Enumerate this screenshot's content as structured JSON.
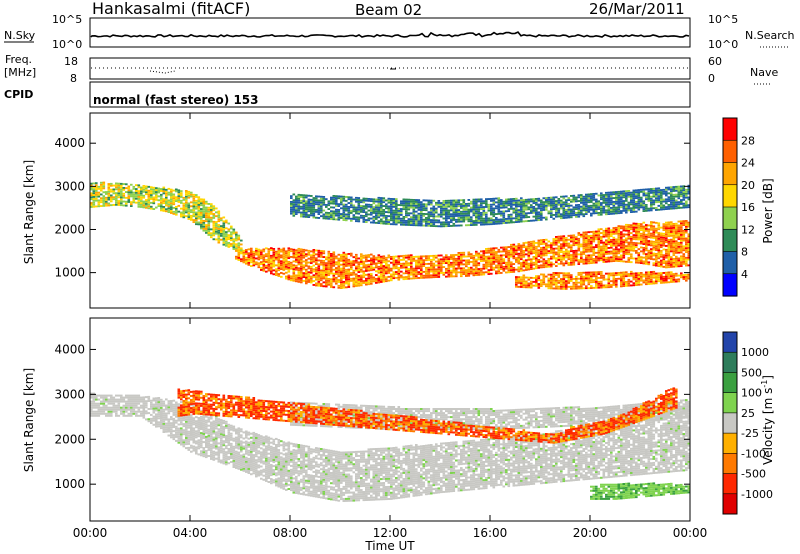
{
  "header": {
    "station": "Hankasalmi (fitACF)",
    "beam": "Beam 02",
    "date": "26/Mar/2011"
  },
  "noise_panel": {
    "left_label": "N.Sky",
    "left_ticks": [
      "10^5",
      "10^0"
    ],
    "right_ticks": [
      "10^5",
      "10^0"
    ],
    "right_label": "N.Search"
  },
  "freq_panel": {
    "label_top": "Freq.",
    "label_bottom": "[MHz]",
    "left_ticks": [
      "18",
      "8"
    ],
    "right_ticks": [
      "60",
      "0"
    ],
    "right_label": "Nave"
  },
  "cpid_panel": {
    "label": "CPID",
    "mode_text": "normal (fast stereo) 153"
  },
  "colorbars": {
    "power": {
      "label": "Power [dB]",
      "ticks": [
        "28",
        "24",
        "20",
        "16",
        "12",
        "8",
        "4"
      ],
      "colors": [
        "#ff0000",
        "#ff6000",
        "#ffa500",
        "#ffd700",
        "#8fd14f",
        "#2e8b57",
        "#1f5fa8",
        "#0000ff"
      ]
    },
    "velocity": {
      "label": "Velocity [m s",
      "label_sup": "-1",
      "label_end": "]",
      "ticks": [
        "1000",
        "500",
        "100",
        "25",
        "-25",
        "-100",
        "-500",
        "-1000"
      ],
      "colors": [
        "#2244aa",
        "#2e7d5b",
        "#3aa040",
        "#7fd34f",
        "#c8c8c4",
        "#ffb000",
        "#ff7a00",
        "#ff2800",
        "#e00000"
      ]
    }
  },
  "chart_data": [
    {
      "type": "heatmap",
      "title": "Power",
      "xlabel": "Time UT",
      "ylabel": "Slant Range [km]",
      "x_ticks": [
        "00:00",
        "04:00",
        "08:00",
        "12:00",
        "16:00",
        "20:00",
        "00:00"
      ],
      "y_ticks": [
        1000,
        2000,
        3000,
        4000
      ],
      "xlim_hours": [
        0,
        24
      ],
      "ylim_km": [
        180,
        4700
      ],
      "bands": [
        {
          "name": "main scatter band",
          "hours": [
            5.8,
            6.5,
            7,
            8,
            9,
            10,
            11,
            12,
            13,
            14,
            15,
            16,
            17,
            18,
            19,
            20,
            21,
            22,
            23,
            24
          ],
          "low_km": [
            1300,
            1100,
            1000,
            800,
            680,
            620,
            700,
            800,
            850,
            880,
            900,
            950,
            1000,
            1100,
            1150,
            1200,
            1250,
            1200,
            1100,
            1150
          ],
          "high_km": [
            1500,
            1550,
            1550,
            1550,
            1500,
            1450,
            1400,
            1380,
            1380,
            1400,
            1450,
            1550,
            1650,
            1750,
            1850,
            1950,
            2050,
            2150,
            2150,
            2200
          ],
          "power_db": 28
        },
        {
          "name": "upper scatter",
          "hours": [
            0,
            1,
            2,
            3,
            4,
            5,
            6
          ],
          "low_km": [
            2500,
            2550,
            2500,
            2400,
            2200,
            1700,
            1450
          ],
          "high_km": [
            3100,
            3050,
            3000,
            2950,
            2850,
            2500,
            1800
          ],
          "power_db": 20
        },
        {
          "name": "lower right band",
          "hours": [
            17,
            18,
            19,
            20,
            21,
            22,
            23,
            24
          ],
          "low_km": [
            650,
            620,
            600,
            620,
            650,
            700,
            750,
            800
          ],
          "high_km": [
            900,
            950,
            1000,
            1000,
            1000,
            1000,
            1000,
            950
          ],
          "power_db": 28
        },
        {
          "name": "ground scatter far range",
          "hours": [
            8,
            10,
            12,
            14,
            16,
            18,
            20,
            22,
            24
          ],
          "low_km": [
            2300,
            2200,
            2100,
            2050,
            2100,
            2200,
            2300,
            2400,
            2500
          ],
          "high_km": [
            2800,
            2750,
            2700,
            2650,
            2700,
            2700,
            2800,
            2900,
            3000
          ],
          "power_db": 12
        }
      ]
    },
    {
      "type": "heatmap",
      "title": "Velocity",
      "xlabel": "Time UT",
      "ylabel": "Slant Range [km]",
      "x_ticks": [
        "00:00",
        "04:00",
        "08:00",
        "12:00",
        "16:00",
        "20:00",
        "00:00"
      ],
      "y_ticks": [
        1000,
        2000,
        3000,
        4000
      ],
      "xlim_hours": [
        0,
        24
      ],
      "ylim_km": [
        180,
        4700
      ],
      "bands": [
        {
          "name": "ground scatter (grey)",
          "hours": [
            0,
            2,
            4,
            6,
            8,
            10,
            12,
            14,
            16,
            18,
            20,
            22,
            24
          ],
          "low_km": [
            2500,
            2500,
            1700,
            1300,
            800,
            600,
            650,
            800,
            900,
            1000,
            1100,
            1200,
            1300
          ],
          "high_km": [
            3000,
            2950,
            2800,
            2200,
            1900,
            1700,
            1800,
            1900,
            2000,
            2100,
            2300,
            2500,
            2700
          ],
          "velocity": 0
        },
        {
          "name": "far ground scatter",
          "hours": [
            8,
            12,
            16,
            20,
            24
          ],
          "low_km": [
            2300,
            2200,
            2200,
            2300,
            2500
          ],
          "high_km": [
            2800,
            2700,
            2650,
            2700,
            2900
          ],
          "velocity": 0
        },
        {
          "name": "positive flow patch",
          "hours": [
            20,
            21,
            22,
            23,
            24
          ],
          "low_km": [
            650,
            650,
            700,
            750,
            800
          ],
          "high_km": [
            950,
            1000,
            1000,
            1000,
            950
          ],
          "velocity": 150
        },
        {
          "name": "negative flow patches",
          "hours": [
            3.5,
            4.2,
            18.5,
            19.5,
            20.5,
            21.5,
            22.5,
            23.5
          ],
          "low_km": [
            2500,
            2550,
            1900,
            2000,
            2100,
            2300,
            2500,
            2700
          ],
          "high_km": [
            3100,
            3050,
            2100,
            2300,
            2400,
            2600,
            2900,
            3200
          ],
          "velocity": -300
        }
      ]
    }
  ]
}
